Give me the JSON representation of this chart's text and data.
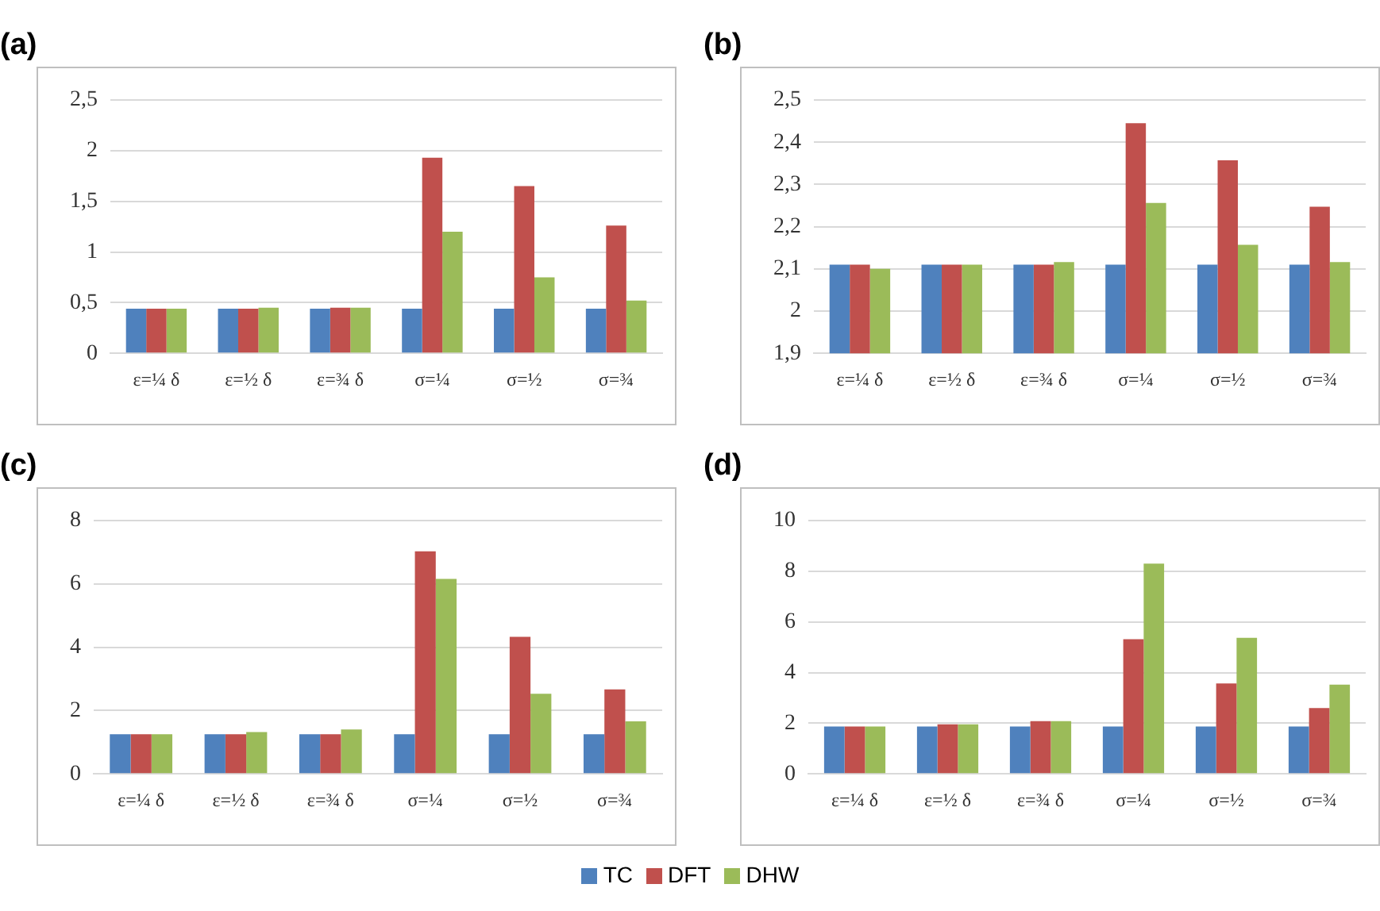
{
  "chart_data": [
    {
      "type": "bar",
      "title": "(a)",
      "categories": [
        "ε=¼ δ",
        "ε=½ δ",
        "ε=¾ δ",
        "σ=¼",
        "σ=½",
        "σ=¾"
      ],
      "series": [
        {
          "name": "TC",
          "color": "#4f81bd",
          "values": [
            0.44,
            0.44,
            0.44,
            0.44,
            0.44,
            0.44
          ]
        },
        {
          "name": "DFT",
          "color": "#c0504d",
          "values": [
            0.44,
            0.44,
            0.45,
            1.93,
            1.65,
            1.26
          ]
        },
        {
          "name": "DHW",
          "color": "#9bbb59",
          "values": [
            0.44,
            0.45,
            0.45,
            1.2,
            0.75,
            0.52
          ]
        }
      ],
      "ylim": [
        0,
        2.5
      ],
      "yticks": [
        0,
        {
          "value": 0.5,
          "label": "0,5"
        },
        1,
        {
          "value": 1.5,
          "label": "1,5"
        },
        2,
        {
          "value": 2.5,
          "label": "2,5"
        }
      ],
      "grid": "y",
      "legend": "bottom"
    },
    {
      "type": "bar",
      "title": "(b)",
      "categories": [
        "ε=¼ δ",
        "ε=½ δ",
        "ε=¾ δ",
        "σ=¼",
        "σ=½",
        "σ=¾"
      ],
      "series": [
        {
          "color": "#4f81bd",
          "values": [
            2.11,
            2.11,
            2.11,
            2.11,
            2.11,
            2.11
          ]
        },
        {
          "color": "#c0504d",
          "values": [
            2.11,
            2.11,
            2.11,
            2.445,
            2.357,
            2.247
          ]
        },
        {
          "color": "#9bbb59",
          "values": [
            2.1,
            2.11,
            2.116,
            2.256,
            2.157,
            2.116
          ]
        }
      ],
      "ylim": [
        1.9,
        2.5
      ],
      "yticks": [
        {
          "value": 1.9,
          "label": "1,9"
        },
        2,
        {
          "value": 2.1,
          "label": "2,1"
        },
        {
          "value": 2.2,
          "label": "2,2"
        },
        {
          "value": 2.3,
          "label": "2,3"
        },
        {
          "value": 2.4,
          "label": "2,4"
        },
        {
          "value": 2.5,
          "label": "2,5"
        }
      ],
      "grid": "y"
    },
    {
      "type": "bar",
      "title": "(c)",
      "categories": [
        "ε=¼ δ",
        "ε=½ δ",
        "ε=¾ δ",
        "σ=¼",
        "σ=½",
        "σ=¾"
      ],
      "series": [
        {
          "color": "#4f81bd",
          "values": [
            1.25,
            1.25,
            1.25,
            1.25,
            1.25,
            1.25
          ]
        },
        {
          "color": "#c0504d",
          "values": [
            1.25,
            1.25,
            1.25,
            7.03,
            4.33,
            2.67
          ]
        },
        {
          "color": "#9bbb59",
          "values": [
            1.25,
            1.32,
            1.4,
            6.16,
            2.53,
            1.66
          ]
        }
      ],
      "ylim": [
        0,
        8
      ],
      "yticks": [
        0,
        2,
        4,
        6,
        8
      ],
      "grid": "y"
    },
    {
      "type": "bar",
      "title": "(d)",
      "categories": [
        "ε=¼ δ",
        "ε=½ δ",
        "ε=¾ δ",
        "σ=¼",
        "σ=½",
        "σ=¾"
      ],
      "series": [
        {
          "color": "#4f81bd",
          "values": [
            1.87,
            1.87,
            1.87,
            1.87,
            1.87,
            1.87
          ]
        },
        {
          "color": "#c0504d",
          "values": [
            1.87,
            1.96,
            2.08,
            5.32,
            3.57,
            2.6
          ]
        },
        {
          "color": "#9bbb59",
          "values": [
            1.87,
            1.96,
            2.08,
            8.3,
            5.37,
            3.52
          ]
        }
      ],
      "ylim": [
        0,
        10
      ],
      "yticks": [
        0,
        2,
        4,
        6,
        8,
        10
      ],
      "grid": "y"
    }
  ]
}
